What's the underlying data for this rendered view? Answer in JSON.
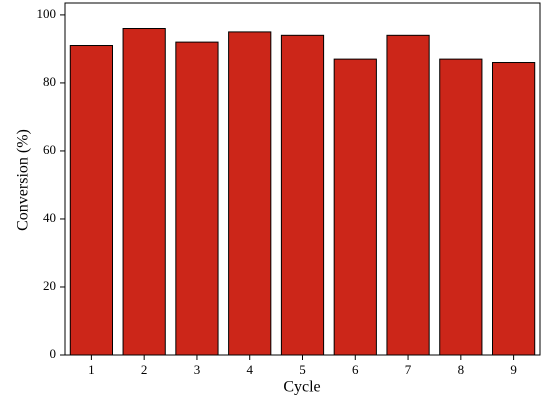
{
  "chart_data": {
    "type": "bar",
    "x_label": "Cycle",
    "y_label": "Conversion (%)",
    "categories": [
      "1",
      "2",
      "3",
      "4",
      "5",
      "6",
      "7",
      "8",
      "9"
    ],
    "values": [
      91,
      96,
      92,
      95,
      94,
      87,
      94,
      87,
      86
    ],
    "color": "#cc2619",
    "ylim": [
      0,
      103.5
    ],
    "yticks": [
      0,
      20,
      40,
      60,
      80,
      100
    ]
  }
}
